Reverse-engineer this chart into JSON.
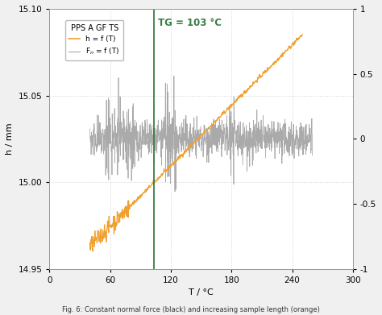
{
  "xlabel": "T / °C",
  "ylabel_left": "h / mm",
  "xlim": [
    0,
    300
  ],
  "ylim_left": [
    14.95,
    15.1
  ],
  "ylim_right": [
    -1.0,
    1.0
  ],
  "xticks": [
    0,
    60,
    120,
    180,
    240,
    300
  ],
  "yticks_left": [
    14.95,
    15.0,
    15.05,
    15.1
  ],
  "yticks_right": [
    -1.0,
    -0.5,
    0,
    0.5,
    1.0
  ],
  "tg_line_x": 103,
  "tg_label": "TG = 103 °C",
  "tg_color": "#3a7d44",
  "legend_title": "PPS A GF TS",
  "legend_h": "h = f (T)",
  "legend_fn": "F$_n$ = f (T)",
  "orange_color": "#f0a030",
  "gray_color": "#aaaaaa",
  "background_color": "#f0f0f0",
  "plot_bg_color": "#ffffff",
  "grid_color": "#cccccc",
  "caption": "Fig. 6: Constant normal force (black) and increasing sample length (orange)"
}
